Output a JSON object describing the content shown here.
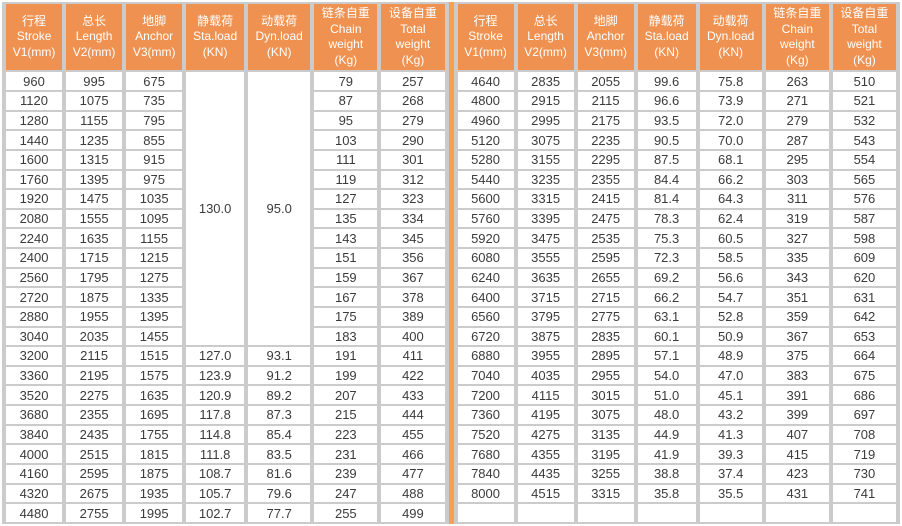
{
  "colors": {
    "header_orange": "#ef9150",
    "divider_orange": "#f7a04e",
    "grid_gray": "#cbcbcb",
    "text": "#3b3b3b"
  },
  "table": {
    "headers": [
      {
        "key": "stroke",
        "lines": [
          "行程",
          "Stroke",
          "V1(mm)"
        ]
      },
      {
        "key": "length",
        "lines": [
          "总长",
          "Length",
          "V2(mm)"
        ]
      },
      {
        "key": "anchor",
        "lines": [
          "地脚",
          "Anchor",
          "V3(mm)"
        ]
      },
      {
        "key": "sta-load",
        "lines": [
          "静载荷",
          "Sta.load",
          "(KN)"
        ]
      },
      {
        "key": "dyn-load",
        "lines": [
          "动载荷",
          "Dyn.load",
          "(KN)"
        ]
      },
      {
        "key": "chain-weight",
        "lines": [
          "链条自重",
          "Chain",
          "weight",
          "(Kg)"
        ]
      },
      {
        "key": "total-weight",
        "lines": [
          "设备自重",
          "Total",
          "weight",
          "(Kg)"
        ]
      }
    ],
    "left": {
      "merged": {
        "span": 14,
        "sta": "130.0",
        "dyn": "95.0"
      },
      "rows": [
        [
          "960",
          "995",
          "675",
          "79",
          "257"
        ],
        [
          "1120",
          "1075",
          "735",
          "87",
          "268"
        ],
        [
          "1280",
          "1155",
          "795",
          "95",
          "279"
        ],
        [
          "1440",
          "1235",
          "855",
          "103",
          "290"
        ],
        [
          "1600",
          "1315",
          "915",
          "111",
          "301"
        ],
        [
          "1760",
          "1395",
          "975",
          "119",
          "312"
        ],
        [
          "1920",
          "1475",
          "1035",
          "127",
          "323"
        ],
        [
          "2080",
          "1555",
          "1095",
          "135",
          "334"
        ],
        [
          "2240",
          "1635",
          "1155",
          "143",
          "345"
        ],
        [
          "2400",
          "1715",
          "1215",
          "151",
          "356"
        ],
        [
          "2560",
          "1795",
          "1275",
          "159",
          "367"
        ],
        [
          "2720",
          "1875",
          "1335",
          "167",
          "378"
        ],
        [
          "2880",
          "1955",
          "1395",
          "175",
          "389"
        ],
        [
          "3040",
          "2035",
          "1455",
          "183",
          "400"
        ],
        [
          "3200",
          "2115",
          "1515",
          "127.0",
          "93.1",
          "191",
          "411"
        ],
        [
          "3360",
          "2195",
          "1575",
          "123.9",
          "91.2",
          "199",
          "422"
        ],
        [
          "3520",
          "2275",
          "1635",
          "120.9",
          "89.2",
          "207",
          "433"
        ],
        [
          "3680",
          "2355",
          "1695",
          "117.8",
          "87.3",
          "215",
          "444"
        ],
        [
          "3840",
          "2435",
          "1755",
          "114.8",
          "85.4",
          "223",
          "455"
        ],
        [
          "4000",
          "2515",
          "1815",
          "111.8",
          "83.5",
          "231",
          "466"
        ],
        [
          "4160",
          "2595",
          "1875",
          "108.7",
          "81.6",
          "239",
          "477"
        ],
        [
          "4320",
          "2675",
          "1935",
          "105.7",
          "79.6",
          "247",
          "488"
        ],
        [
          "4480",
          "2755",
          "1995",
          "102.7",
          "77.7",
          "255",
          "499"
        ]
      ]
    },
    "right": {
      "trailing_empty_row": true,
      "rows": [
        [
          "4640",
          "2835",
          "2055",
          "99.6",
          "75.8",
          "263",
          "510"
        ],
        [
          "4800",
          "2915",
          "2115",
          "96.6",
          "73.9",
          "271",
          "521"
        ],
        [
          "4960",
          "2995",
          "2175",
          "93.5",
          "72.0",
          "279",
          "532"
        ],
        [
          "5120",
          "3075",
          "2235",
          "90.5",
          "70.0",
          "287",
          "543"
        ],
        [
          "5280",
          "3155",
          "2295",
          "87.5",
          "68.1",
          "295",
          "554"
        ],
        [
          "5440",
          "3235",
          "2355",
          "84.4",
          "66.2",
          "303",
          "565"
        ],
        [
          "5600",
          "3315",
          "2415",
          "81.4",
          "64.3",
          "311",
          "576"
        ],
        [
          "5760",
          "3395",
          "2475",
          "78.3",
          "62.4",
          "319",
          "587"
        ],
        [
          "5920",
          "3475",
          "2535",
          "75.3",
          "60.5",
          "327",
          "598"
        ],
        [
          "6080",
          "3555",
          "2595",
          "72.3",
          "58.5",
          "335",
          "609"
        ],
        [
          "6240",
          "3635",
          "2655",
          "69.2",
          "56.6",
          "343",
          "620"
        ],
        [
          "6400",
          "3715",
          "2715",
          "66.2",
          "54.7",
          "351",
          "631"
        ],
        [
          "6560",
          "3795",
          "2775",
          "63.1",
          "52.8",
          "359",
          "642"
        ],
        [
          "6720",
          "3875",
          "2835",
          "60.1",
          "50.9",
          "367",
          "653"
        ],
        [
          "6880",
          "3955",
          "2895",
          "57.1",
          "48.9",
          "375",
          "664"
        ],
        [
          "7040",
          "4035",
          "2955",
          "54.0",
          "47.0",
          "383",
          "675"
        ],
        [
          "7200",
          "4115",
          "3015",
          "51.0",
          "45.1",
          "391",
          "686"
        ],
        [
          "7360",
          "4195",
          "3075",
          "48.0",
          "43.2",
          "399",
          "697"
        ],
        [
          "7520",
          "4275",
          "3135",
          "44.9",
          "41.3",
          "407",
          "708"
        ],
        [
          "7680",
          "4355",
          "3195",
          "41.9",
          "39.3",
          "415",
          "719"
        ],
        [
          "7840",
          "4435",
          "3255",
          "38.8",
          "37.4",
          "423",
          "730"
        ],
        [
          "8000",
          "4515",
          "3315",
          "35.8",
          "35.5",
          "431",
          "741"
        ]
      ]
    }
  }
}
